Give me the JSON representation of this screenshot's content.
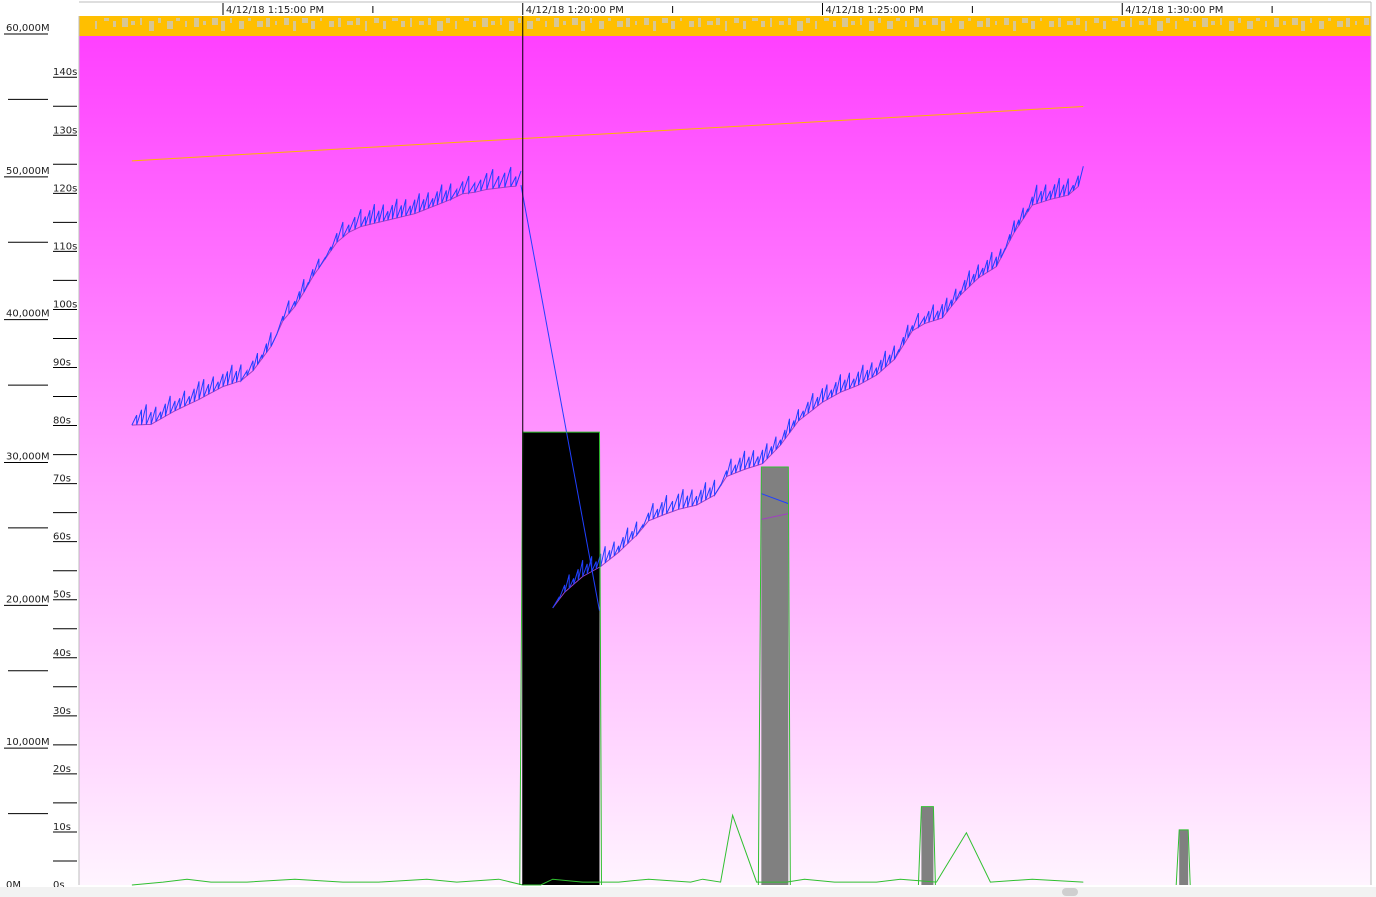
{
  "chart_data": {
    "type": "line",
    "title": "",
    "colors": {
      "background_top": "#ff40ff",
      "background_bottom": "#fff4ff",
      "header_bar": "#ffbf00",
      "header_marks": "#c8c8c8",
      "heap_line": "#2040ff",
      "baseline_line": "#a040c0",
      "trend_line": "#ffb400",
      "gc_pause_line": "#30c030",
      "pause_bar_full": "#000000",
      "pause_bar_other": "#808080",
      "cursor": "#000000"
    },
    "axes": {
      "memory": {
        "label": "",
        "ticks": [
          "60,000M",
          "50,000M",
          "40,000M",
          "30,000M",
          "20,000M",
          "10,000M",
          "0M"
        ],
        "range": [
          0,
          60000
        ]
      },
      "pause": {
        "label": "",
        "ticks": [
          "140s",
          "130s",
          "120s",
          "110s",
          "100s",
          "90s",
          "80s",
          "70s",
          "60s",
          "50s",
          "40s",
          "30s",
          "20s",
          "10s",
          "0s"
        ],
        "range": [
          0,
          144
        ]
      },
      "time": {
        "ticks": [
          "4/12/18 1:15:00 PM",
          "4/12/18 1:20:00 PM",
          "4/12/18 1:25:00 PM",
          "4/12/18 1:30:00 PM"
        ],
        "range_minutes": [
          -1.52,
          8.2
        ]
      }
    },
    "cursor_minutes": 5.0,
    "series": [
      {
        "name": "",
        "kind": "heap_after_gc",
        "x_minutes": [
          -1.52,
          -1.2,
          -0.8,
          -0.4,
          0.0,
          0.3,
          0.5,
          0.8,
          1.0,
          1.2,
          1.35,
          1.5,
          1.7,
          1.9,
          2.1,
          2.3,
          2.6,
          2.9,
          3.2,
          3.5,
          3.8,
          4.0,
          4.2,
          4.4,
          4.6,
          4.8,
          4.97
        ],
        "y_M": [
          32200,
          32250,
          33200,
          34000,
          34900,
          35300,
          36000,
          37700,
          39500,
          40500,
          41500,
          42600,
          43800,
          45000,
          45700,
          46100,
          46400,
          46700,
          47000,
          47500,
          48000,
          48400,
          48500,
          48700,
          48800,
          48900,
          48950
        ]
      },
      {
        "name": "",
        "kind": "heap_after_gc",
        "x_minutes": [
          5.5,
          5.7,
          6.0,
          6.3,
          6.6,
          6.9,
          7.1,
          7.4,
          7.6,
          7.9,
          8.2,
          8.4,
          8.7,
          9.0,
          9.3,
          9.6,
          10.0,
          10.3,
          10.6,
          10.9,
          11.2,
          11.5,
          11.7,
          12.0,
          12.3,
          12.6,
          12.9,
          13.2,
          13.5,
          13.8,
          14.1,
          14.35
        ],
        "y_M": [
          19400,
          20500,
          21600,
          22300,
          23300,
          24500,
          25500,
          26000,
          26300,
          26600,
          27300,
          28600,
          29100,
          29500,
          30800,
          32500,
          33800,
          34500,
          35000,
          35700,
          36800,
          38800,
          39300,
          39700,
          41300,
          42500,
          43300,
          45700,
          47600,
          48000,
          48300,
          49200
        ]
      },
      {
        "name": "",
        "kind": "pause_seconds",
        "x_minutes": [
          -1.52,
          -1.0,
          -0.6,
          -0.2,
          0.4,
          1.2,
          2.0,
          2.6,
          3.4,
          3.9,
          4.6,
          5.0,
          5.3,
          5.5,
          6.0,
          6.6,
          7.1,
          7.8,
          8.0,
          8.3,
          8.5,
          8.9,
          9.4,
          9.7,
          10.2,
          10.9,
          11.3,
          11.9,
          12.4,
          12.8,
          13.5,
          14.35
        ],
        "y_s": [
          0,
          0.5,
          1,
          0.5,
          0.5,
          1,
          0.5,
          0.5,
          1,
          0.5,
          1,
          0,
          0,
          1,
          0.5,
          0.5,
          1,
          0.5,
          1,
          0.5,
          12,
          0.5,
          0.5,
          1,
          0.5,
          0.5,
          1,
          0.5,
          9,
          0.5,
          1,
          0.5
        ]
      }
    ],
    "pauses": [
      {
        "start_min": 5.0,
        "end_min": 6.28,
        "seconds": 78,
        "color": "pause_bar_full"
      },
      {
        "start_min": 8.98,
        "end_min": 9.43,
        "seconds": 72,
        "color": "pause_bar_other"
      },
      {
        "start_min": 11.65,
        "end_min": 11.85,
        "seconds": 13.5,
        "color": "pause_bar_other"
      },
      {
        "start_min": 15.95,
        "end_min": 16.1,
        "seconds": 9.5,
        "color": "pause_bar_other"
      }
    ],
    "trend": {
      "x_minutes": [
        -1.52,
        14.35
      ],
      "y_M": [
        50700,
        54500
      ]
    },
    "pause_drop": {
      "x_minutes": [
        4.97,
        6.28
      ],
      "y_M": [
        49000,
        19200
      ]
    },
    "pause_rise": {
      "x_minutes": [
        8.98,
        9.43
      ],
      "y_M": [
        27400,
        26700
      ]
    }
  }
}
